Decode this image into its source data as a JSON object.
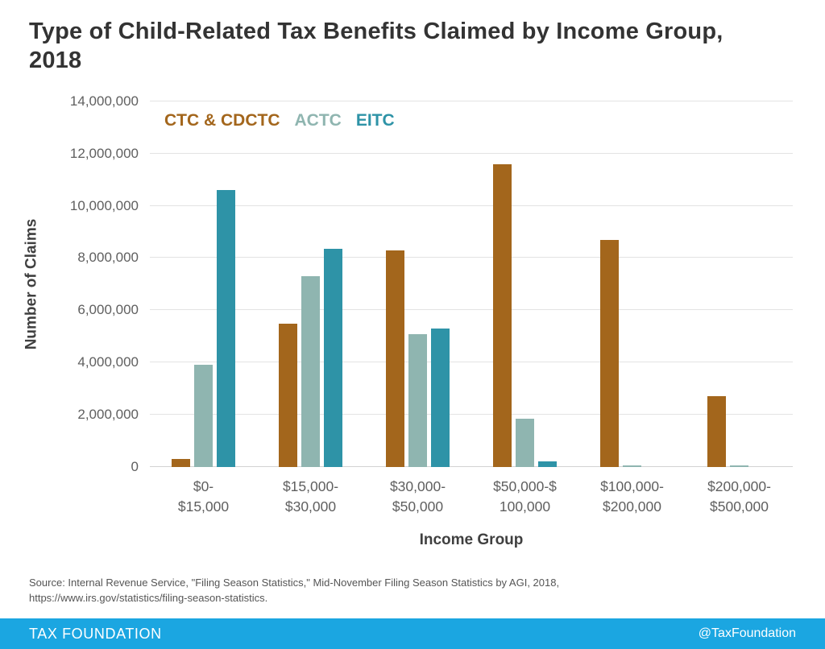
{
  "page": {
    "source_line1": "Source: Internal Revenue Service, \"Filing Season Statistics,\" Mid-November Filing Season Statistics by AGI, 2018,",
    "source_line2": "https://www.irs.gov/statistics/filing-season-statistics.",
    "footer": {
      "brand": "TAX FOUNDATION",
      "handle": "@TaxFoundation",
      "bar_color": "#1ba6e1"
    }
  },
  "chart_data": {
    "type": "bar",
    "title": "Type of Child-Related Tax Benefits Claimed by Income Group, 2018",
    "xlabel": "Income Group",
    "ylabel": "Number of Claims",
    "ylim": [
      0,
      14000000
    ],
    "grid": true,
    "legend_position": "top-left-inside",
    "ytick_values": [
      0,
      2000000,
      4000000,
      6000000,
      8000000,
      10000000,
      12000000,
      14000000
    ],
    "ytick_labels": [
      "0",
      "2,000,000",
      "4,000,000",
      "6,000,000",
      "8,000,000",
      "10,000,000",
      "12,000,000",
      "14,000,000"
    ],
    "categories": [
      "$0-\n$15,000",
      "$15,000-\n$30,000",
      "$30,000-\n$50,000",
      "$50,000-$\n100,000",
      "$100,000-\n$200,000",
      "$200,000-\n$500,000"
    ],
    "series": [
      {
        "name": "CTC & CDCTC",
        "color": "#a3661c",
        "values": [
          300000,
          5500000,
          8300000,
          11600000,
          8700000,
          2700000
        ]
      },
      {
        "name": "ACTC",
        "color": "#8fb5b0",
        "values": [
          3900000,
          7300000,
          5100000,
          1850000,
          60000,
          60000
        ]
      },
      {
        "name": "EITC",
        "color": "#2e93a7",
        "values": [
          10600000,
          8350000,
          5300000,
          200000,
          0,
          0
        ]
      }
    ]
  }
}
